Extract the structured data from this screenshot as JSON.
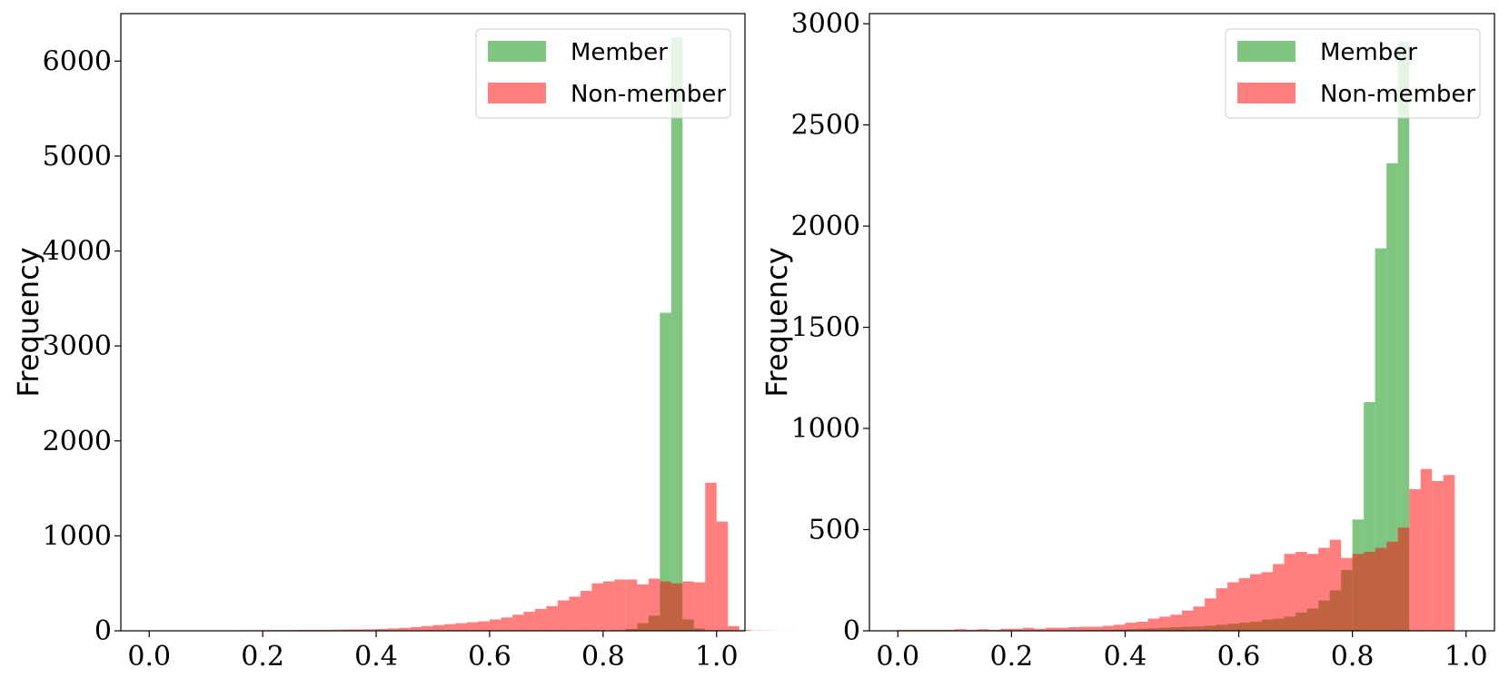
{
  "chart_data": [
    {
      "type": "histogram",
      "ylabel": "Frequency",
      "xlim": [
        -0.05,
        1.05
      ],
      "ylim": [
        0,
        6500
      ],
      "xticks": [
        "0.0",
        "0.2",
        "0.4",
        "0.6",
        "0.8",
        "1.0"
      ],
      "yticks": [
        "0",
        "1000",
        "2000",
        "3000",
        "4000",
        "5000",
        "6000"
      ],
      "ytick_values": [
        0,
        1000,
        2000,
        3000,
        4000,
        5000,
        6000
      ],
      "legend": {
        "position": "top-right"
      },
      "bin_edges_start": 0.0,
      "bin_width": 0.02,
      "series": [
        {
          "name": "Member",
          "color": "#2ca02c",
          "values": [
            0,
            0,
            0,
            0,
            0,
            0,
            0,
            0,
            0,
            0,
            0,
            0,
            0,
            0,
            0,
            0,
            0,
            0,
            0,
            0,
            0,
            0,
            0,
            0,
            0,
            0,
            0,
            0,
            0,
            0,
            0,
            0,
            0,
            0,
            0,
            0,
            0,
            0,
            0,
            0,
            0,
            0,
            20,
            80,
            160,
            3350,
            6250,
            120,
            25,
            5,
            0,
            0,
            0,
            0,
            0,
            0,
            0,
            0,
            0,
            0
          ]
        },
        {
          "name": "Non-member",
          "color": "#ff0000",
          "values": [
            2,
            2,
            3,
            3,
            3,
            3,
            5,
            5,
            6,
            7,
            8,
            8,
            8,
            10,
            10,
            10,
            12,
            14,
            15,
            16,
            20,
            25,
            30,
            40,
            50,
            60,
            70,
            80,
            90,
            100,
            120,
            140,
            170,
            200,
            230,
            260,
            320,
            360,
            420,
            500,
            520,
            540,
            540,
            490,
            550,
            520,
            500,
            520,
            510,
            1560,
            1150,
            50,
            10,
            3,
            2,
            1,
            1,
            0,
            0,
            0
          ],
          "values_note_offset": 0
        }
      ]
    },
    {
      "type": "histogram",
      "ylabel": "Frequency",
      "xlim": [
        -0.05,
        1.05
      ],
      "ylim": [
        0,
        3050
      ],
      "xticks": [
        "0.0",
        "0.2",
        "0.4",
        "0.6",
        "0.8",
        "1.0"
      ],
      "yticks": [
        "0",
        "500",
        "1000",
        "1500",
        "2000",
        "2500",
        "3000"
      ],
      "ytick_values": [
        0,
        500,
        1000,
        1500,
        2000,
        2500,
        3000
      ],
      "legend": {
        "position": "top-right"
      },
      "bin_edges_start": 0.0,
      "bin_width": 0.02,
      "series": [
        {
          "name": "Member",
          "color": "#2ca02c",
          "values": [
            0,
            0,
            0,
            0,
            0,
            0,
            0,
            0,
            0,
            0,
            0,
            0,
            0,
            0,
            1,
            2,
            3,
            4,
            5,
            6,
            8,
            10,
            12,
            15,
            18,
            20,
            22,
            25,
            30,
            35,
            40,
            45,
            55,
            60,
            70,
            90,
            110,
            150,
            200,
            300,
            550,
            1130,
            1890,
            2310,
            2910
          ]
        },
        {
          "name": "Non-member",
          "color": "#ff0000",
          "values": [
            5,
            5,
            5,
            5,
            5,
            8,
            5,
            8,
            5,
            10,
            10,
            15,
            10,
            15,
            15,
            18,
            20,
            20,
            25,
            30,
            40,
            45,
            60,
            70,
            80,
            100,
            120,
            160,
            210,
            240,
            260,
            280,
            290,
            330,
            380,
            390,
            380,
            410,
            450,
            360,
            380,
            390,
            410,
            440,
            510,
            700,
            800,
            740,
            770
          ]
        }
      ]
    }
  ],
  "legend_labels": {
    "member": "Member",
    "nonmember": "Non-member"
  }
}
